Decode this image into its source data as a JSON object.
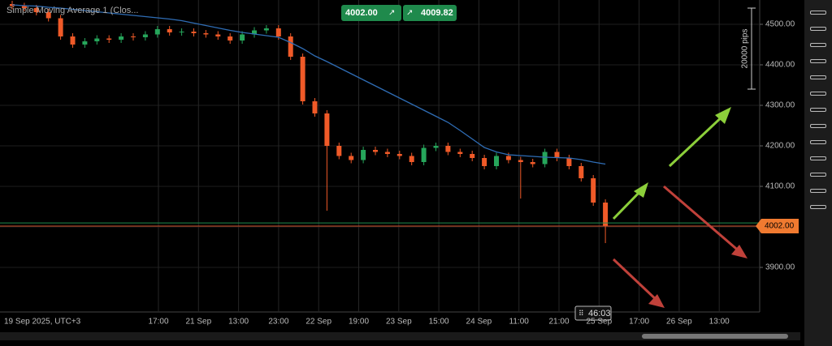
{
  "chart_data": {
    "type": "candlestick",
    "title": "Simple Moving Average 1 (Clos...",
    "x_labels": [
      "19 Sep 2025, UTC+3",
      "17:00",
      "21 Sep",
      "13:00",
      "23:00",
      "22 Sep",
      "19:00",
      "23 Sep",
      "15:00",
      "24 Sep",
      "11:00",
      "21:00",
      "25 Sep",
      "17:00",
      "26 Sep",
      "13:00"
    ],
    "ylim": [
      3790,
      4560
    ],
    "yticks": [
      {
        "value": 3900,
        "label": "3900.00"
      },
      {
        "value": 4000,
        "label": "4000.00"
      },
      {
        "value": 4100,
        "label": "4100.00"
      },
      {
        "value": 4200,
        "label": "4200.00"
      },
      {
        "value": 4300,
        "label": "4300.00"
      },
      {
        "value": 4400,
        "label": "4400.00"
      },
      {
        "value": 4500,
        "label": "4500.00"
      }
    ],
    "up_color": "#26a65b",
    "down_color": "#f05a28",
    "open": [
      4550,
      4545,
      4540,
      4530,
      4515,
      4470,
      4450,
      4458,
      4465,
      4462,
      4470,
      4468,
      4475,
      4488,
      4480,
      4482,
      4478,
      4475,
      4470,
      4460,
      4475,
      4485,
      4490,
      4470,
      4420,
      4310,
      4280,
      4200,
      4175,
      4165,
      4190,
      4185,
      4180,
      4175,
      4160,
      4195,
      4200,
      4185,
      4180,
      4170,
      4150,
      4175,
      4165,
      4160,
      4155,
      4185,
      4170,
      4150,
      4120,
      4060
    ],
    "high": [
      4558,
      4553,
      4548,
      4538,
      4523,
      4478,
      4466,
      4473,
      4473,
      4478,
      4478,
      4483,
      4496,
      4496,
      4490,
      4490,
      4486,
      4483,
      4478,
      4483,
      4493,
      4498,
      4498,
      4478,
      4428,
      4318,
      4288,
      4208,
      4183,
      4198,
      4198,
      4193,
      4188,
      4183,
      4203,
      4208,
      4208,
      4193,
      4188,
      4178,
      4183,
      4183,
      4173,
      4168,
      4193,
      4193,
      4178,
      4158,
      4128,
      4068
    ],
    "low": [
      4537,
      4532,
      4522,
      4507,
      4462,
      4442,
      4442,
      4450,
      4454,
      4454,
      4460,
      4460,
      4467,
      4472,
      4472,
      4470,
      4467,
      4462,
      4452,
      4452,
      4467,
      4477,
      4462,
      4412,
      4302,
      4272,
      4040,
      4167,
      4157,
      4157,
      4177,
      4172,
      4167,
      4152,
      4152,
      4187,
      4177,
      4172,
      4162,
      4142,
      4142,
      4157,
      4070,
      4147,
      4147,
      4162,
      4142,
      4112,
      4052,
      3960
    ],
    "close": [
      4545,
      4540,
      4530,
      4515,
      4470,
      4450,
      4458,
      4465,
      4462,
      4470,
      4468,
      4475,
      4488,
      4480,
      4482,
      4478,
      4475,
      4470,
      4460,
      4475,
      4485,
      4490,
      4470,
      4420,
      4310,
      4280,
      4200,
      4175,
      4165,
      4190,
      4185,
      4180,
      4175,
      4160,
      4195,
      4200,
      4185,
      4180,
      4170,
      4150,
      4175,
      4165,
      4160,
      4155,
      4185,
      4170,
      4150,
      4120,
      4060,
      4002
    ],
    "sma": {
      "name": "Simple Moving Average 1",
      "color": "#2f6db5",
      "values": [
        4548,
        4546,
        4545,
        4542,
        4540,
        4537,
        4534,
        4531,
        4528,
        4525,
        4522,
        4519,
        4516,
        4513,
        4509,
        4503,
        4497,
        4491,
        4485,
        4480,
        4476,
        4472,
        4468,
        4455,
        4440,
        4422,
        4408,
        4393,
        4378,
        4363,
        4348,
        4333,
        4318,
        4303,
        4288,
        4273,
        4258,
        4238,
        4217,
        4196,
        4185,
        4178,
        4176,
        4174,
        4172,
        4171,
        4170,
        4166,
        4160,
        4155
      ]
    },
    "bid": {
      "value": 4002,
      "label": "4002.00"
    },
    "ask": {
      "value": 4009.82,
      "label": "4009.82"
    },
    "timer": "46:03",
    "ruler": "20000 pips",
    "grid": true
  }
}
